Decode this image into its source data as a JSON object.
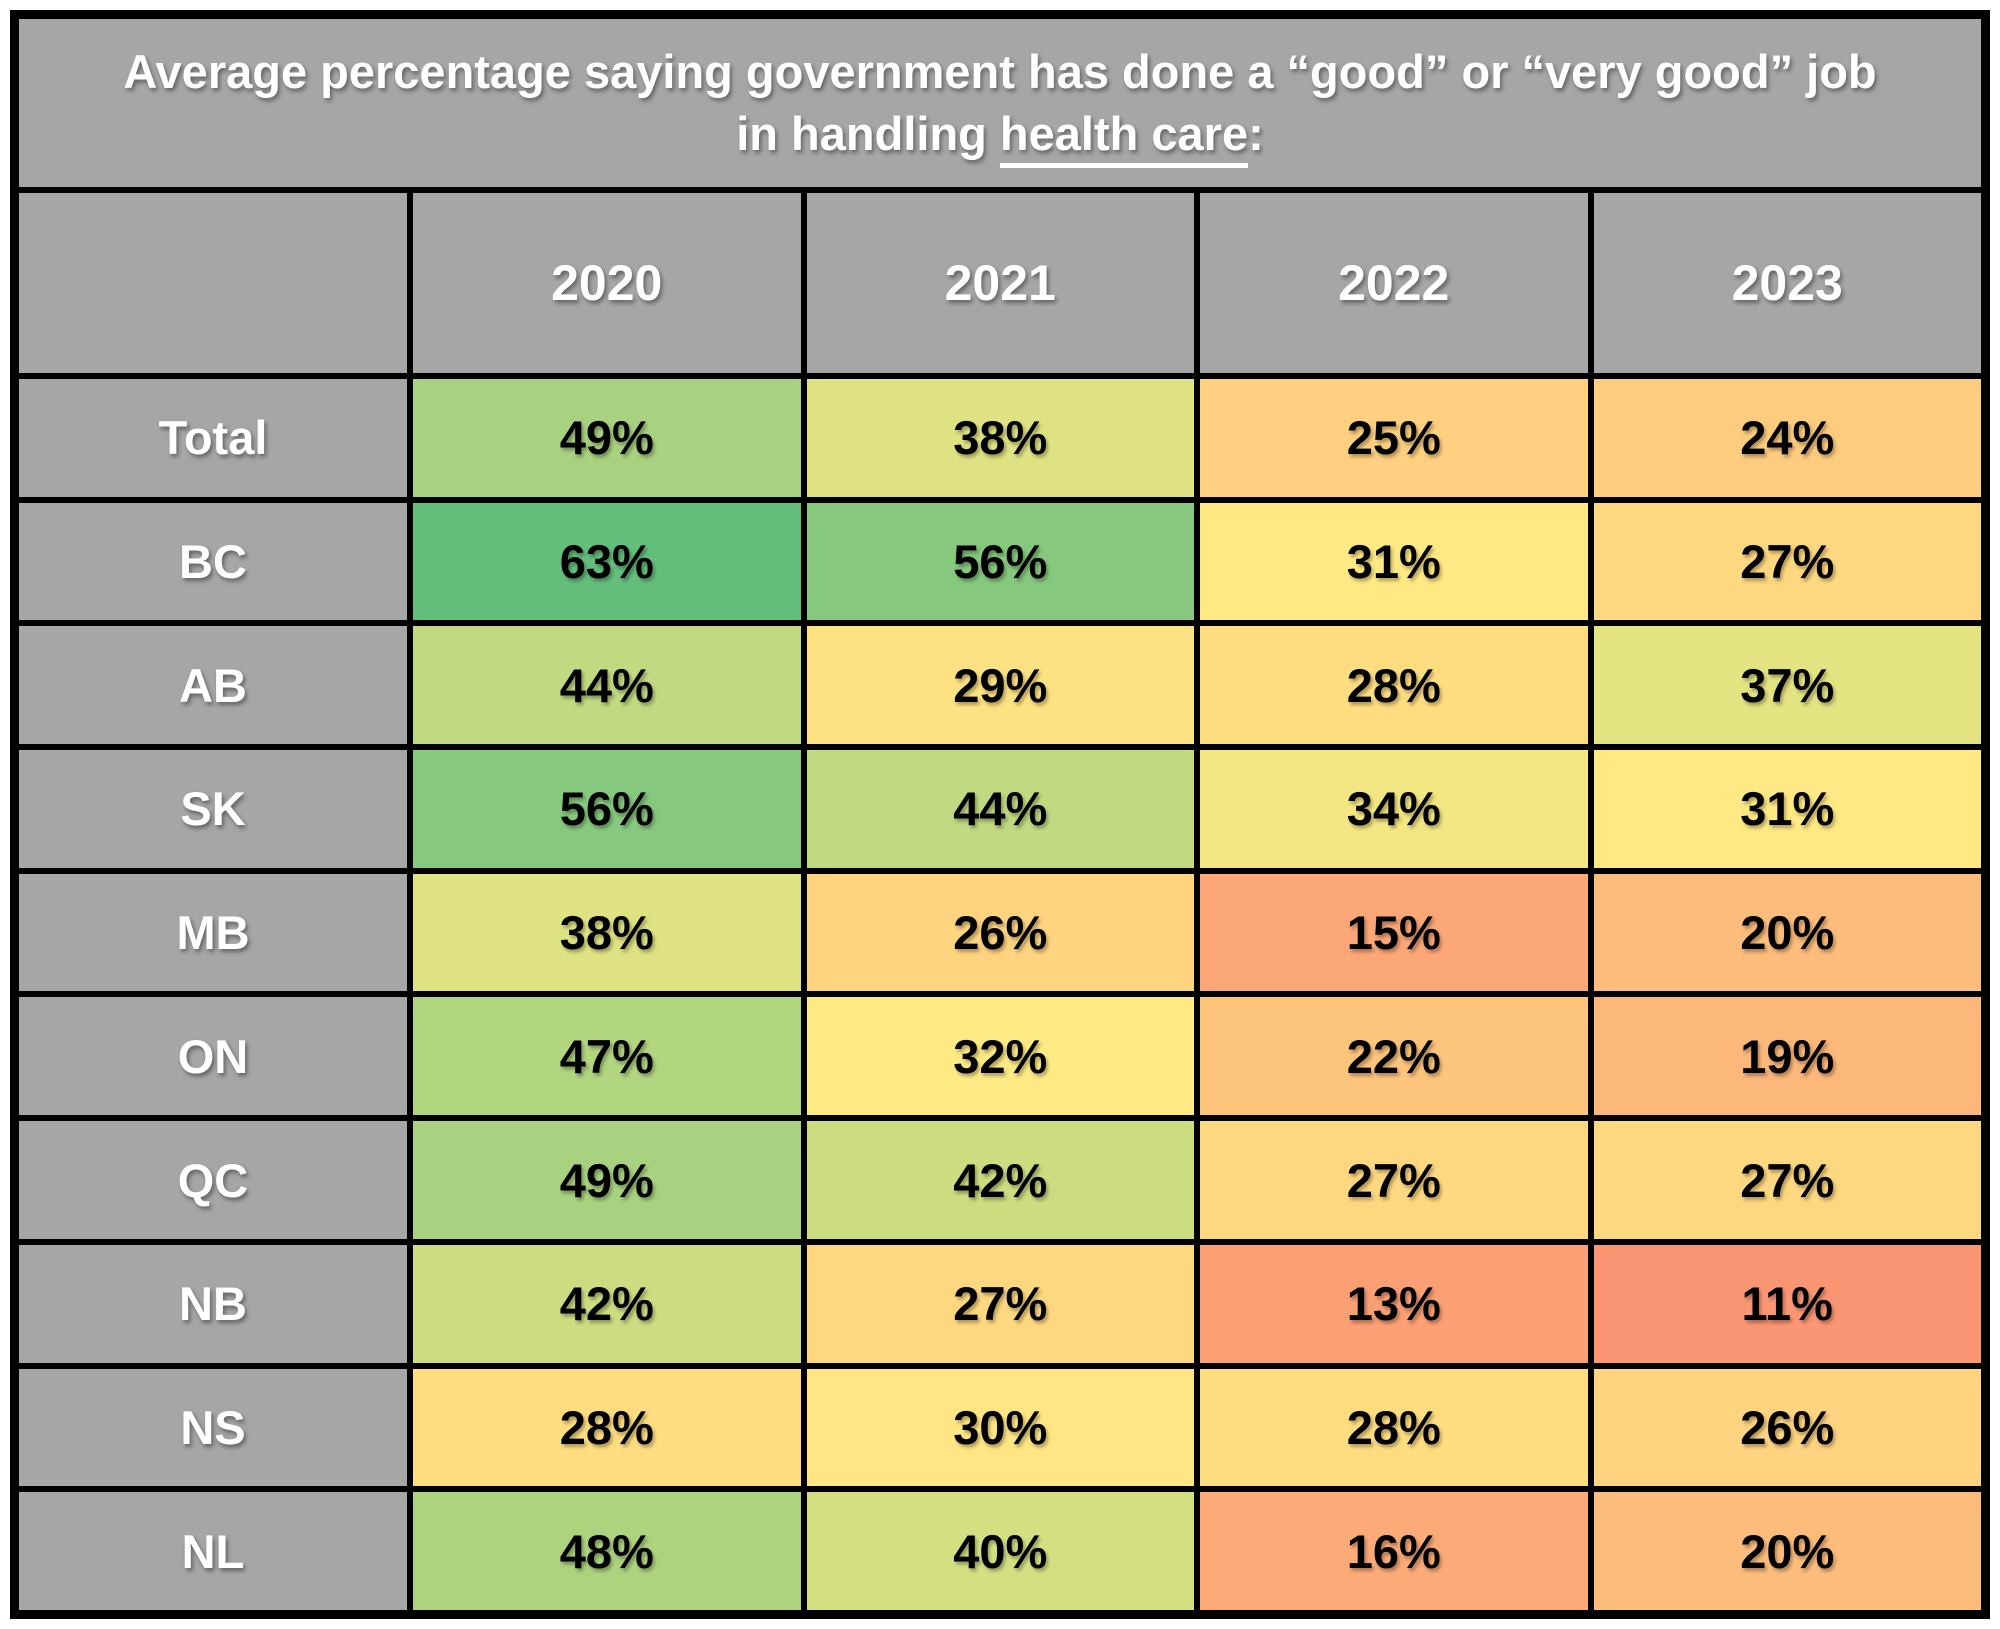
{
  "title": {
    "prefix": "Average percentage saying government has done a “good” or “very good” job in handling ",
    "underlined": "health care",
    "suffix": ":"
  },
  "chart_data": {
    "type": "heatmap",
    "title": "Average percentage saying government has done a “good” or “very good” job in handling health care:",
    "columns": [
      "2020",
      "2021",
      "2022",
      "2023"
    ],
    "rows": [
      {
        "label": "Total",
        "values": [
          49,
          38,
          25,
          24
        ],
        "colors": [
          "#A8D27F",
          "#DFE282",
          "#FED07F",
          "#FDCC7E"
        ]
      },
      {
        "label": "BC",
        "values": [
          63,
          56,
          31,
          27
        ],
        "colors": [
          "#63BE7B",
          "#86C87D",
          "#FFE984",
          "#FED880"
        ]
      },
      {
        "label": "AB",
        "values": [
          44,
          29,
          28,
          37
        ],
        "colors": [
          "#C1D980",
          "#FEE182",
          "#FEDD81",
          "#E4E382"
        ]
      },
      {
        "label": "SK",
        "values": [
          56,
          44,
          34,
          31
        ],
        "colors": [
          "#86C87D",
          "#C1D980",
          "#F3E783",
          "#FFE984"
        ]
      },
      {
        "label": "MB",
        "values": [
          38,
          26,
          15,
          20
        ],
        "colors": [
          "#DFE282",
          "#FED480",
          "#FBA777",
          "#FCBC7B"
        ]
      },
      {
        "label": "ON",
        "values": [
          47,
          32,
          22,
          19
        ],
        "colors": [
          "#B2D580",
          "#FDEA84",
          "#FDC47C",
          "#FCB77A"
        ]
      },
      {
        "label": "QC",
        "values": [
          49,
          42,
          27,
          27
        ],
        "colors": [
          "#A8D27F",
          "#CBDC81",
          "#FED880",
          "#FED880"
        ]
      },
      {
        "label": "NB",
        "values": [
          42,
          27,
          13,
          11
        ],
        "colors": [
          "#CBDC81",
          "#FED880",
          "#FB9F75",
          "#FA9674"
        ]
      },
      {
        "label": "NS",
        "values": [
          28,
          30,
          28,
          26
        ],
        "colors": [
          "#FEDD81",
          "#FFE583",
          "#FEDD81",
          "#FED480"
        ]
      },
      {
        "label": "NL",
        "values": [
          48,
          40,
          16,
          20
        ],
        "colors": [
          "#ADD37F",
          "#D5DF82",
          "#FCAB78",
          "#FCBC7B"
        ]
      }
    ],
    "value_suffix": "%",
    "color_scale": {
      "low": "#F8696B",
      "mid": "#FFEB84",
      "high": "#63BE7B"
    },
    "legend_position": "none",
    "grid": true
  },
  "colors": {
    "header_bg": "#A6A6A6",
    "border": "#000000",
    "title_text": "#FFFFFF",
    "value_text": "#000000",
    "page_bg": "#FFFFFF"
  }
}
